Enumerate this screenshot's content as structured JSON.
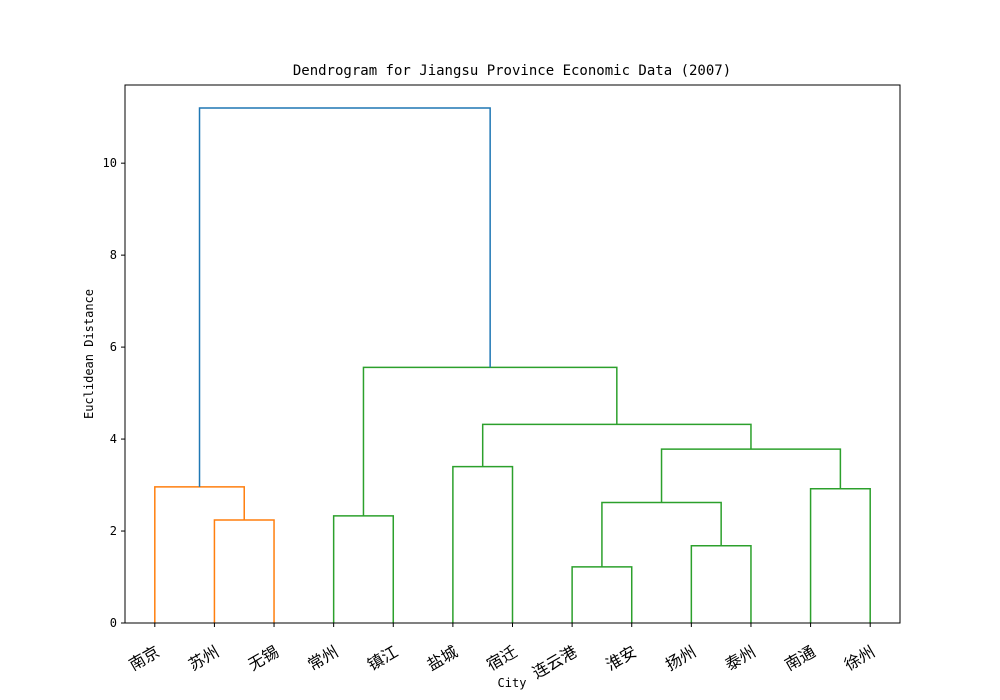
{
  "chart_data": {
    "type": "dendrogram",
    "title": "Dendrogram for Jiangsu Province Economic Data (2007)",
    "xlabel": "City",
    "ylabel": "Euclidean Distance",
    "ylim": [
      0,
      11.7
    ],
    "yticks": [
      0,
      2,
      4,
      6,
      8,
      10
    ],
    "grid": false,
    "leaves": [
      "南京",
      "苏州",
      "无锡",
      "常州",
      "镇江",
      "盐城",
      "宿迁",
      "连云港",
      "淮安",
      "扬州",
      "泰州",
      "南通",
      "徐州"
    ],
    "merges": [
      {
        "left": 7,
        "right": 8,
        "height": 1.22
      },
      {
        "left": 9,
        "right": 10,
        "height": 1.68
      },
      {
        "left": 1,
        "right": 2,
        "height": 2.24
      },
      {
        "left": 3,
        "right": 4,
        "height": 2.33
      },
      {
        "left": 13,
        "right": 14,
        "height": 2.62
      },
      {
        "left": 11,
        "right": 12,
        "height": 2.92
      },
      {
        "left": 0,
        "right": 15,
        "height": 2.96
      },
      {
        "left": 5,
        "right": 6,
        "height": 3.4
      },
      {
        "left": 17,
        "right": 18,
        "height": 3.78
      },
      {
        "left": 20,
        "right": 21,
        "height": 4.32
      },
      {
        "left": 16,
        "right": 22,
        "height": 5.56
      },
      {
        "left": 19,
        "right": 23,
        "height": 11.2
      }
    ],
    "clusters": [
      {
        "leaves": [
          "南京",
          "苏州",
          "无锡"
        ],
        "color": "#ff7f0e"
      },
      {
        "leaves": [
          "常州",
          "镇江",
          "盐城",
          "宿迁",
          "连云港",
          "淮安",
          "扬州",
          "泰州",
          "南通",
          "徐州"
        ],
        "color": "#2ca02c"
      }
    ],
    "above_threshold_color": "#1f77b4"
  }
}
